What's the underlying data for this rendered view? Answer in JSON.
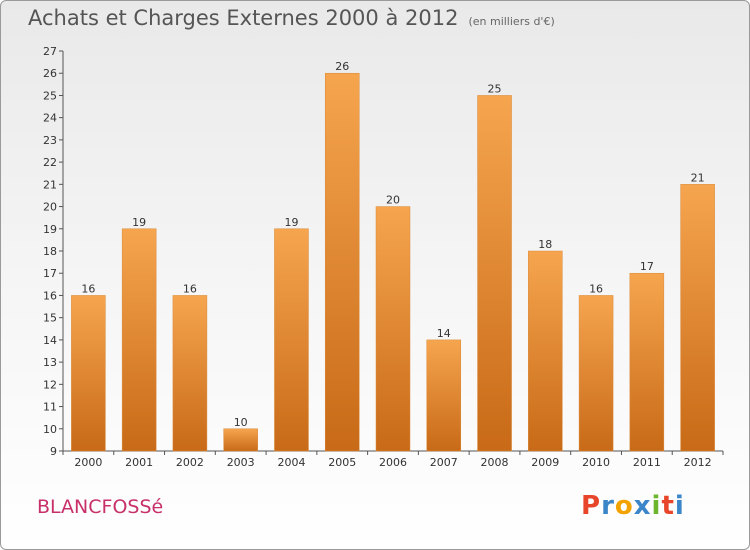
{
  "header": {
    "title": "Achats et Charges Externes 2000 à 2012",
    "unit": "(en milliers d'€)"
  },
  "footer": {
    "place": "BLANCFOSSé",
    "logo": "Proxiti"
  },
  "colors": {
    "bar_light": "#f6a54f",
    "bar_dark": "#c86a17",
    "place": "#c8306a",
    "logo_letters": [
      "#e8462a",
      "#3a86c8",
      "#f2a300",
      "#3a86c8",
      "#6cb52d",
      "#e8462a",
      "#3a86c8"
    ]
  },
  "chart_data": {
    "type": "bar",
    "title": "Achats et Charges Externes 2000 à 2012",
    "subtitle": "(en milliers d'€)",
    "categories": [
      "2000",
      "2001",
      "2002",
      "2003",
      "2004",
      "2005",
      "2006",
      "2007",
      "2008",
      "2009",
      "2010",
      "2011",
      "2012"
    ],
    "values": [
      16,
      19,
      16,
      10,
      19,
      26,
      20,
      14,
      25,
      18,
      16,
      17,
      21
    ],
    "ylim": [
      9,
      27
    ],
    "yticks": [
      9,
      10,
      11,
      12,
      13,
      14,
      15,
      16,
      17,
      18,
      19,
      20,
      21,
      22,
      23,
      24,
      25,
      26,
      27
    ],
    "grid": false,
    "legend": "none"
  }
}
